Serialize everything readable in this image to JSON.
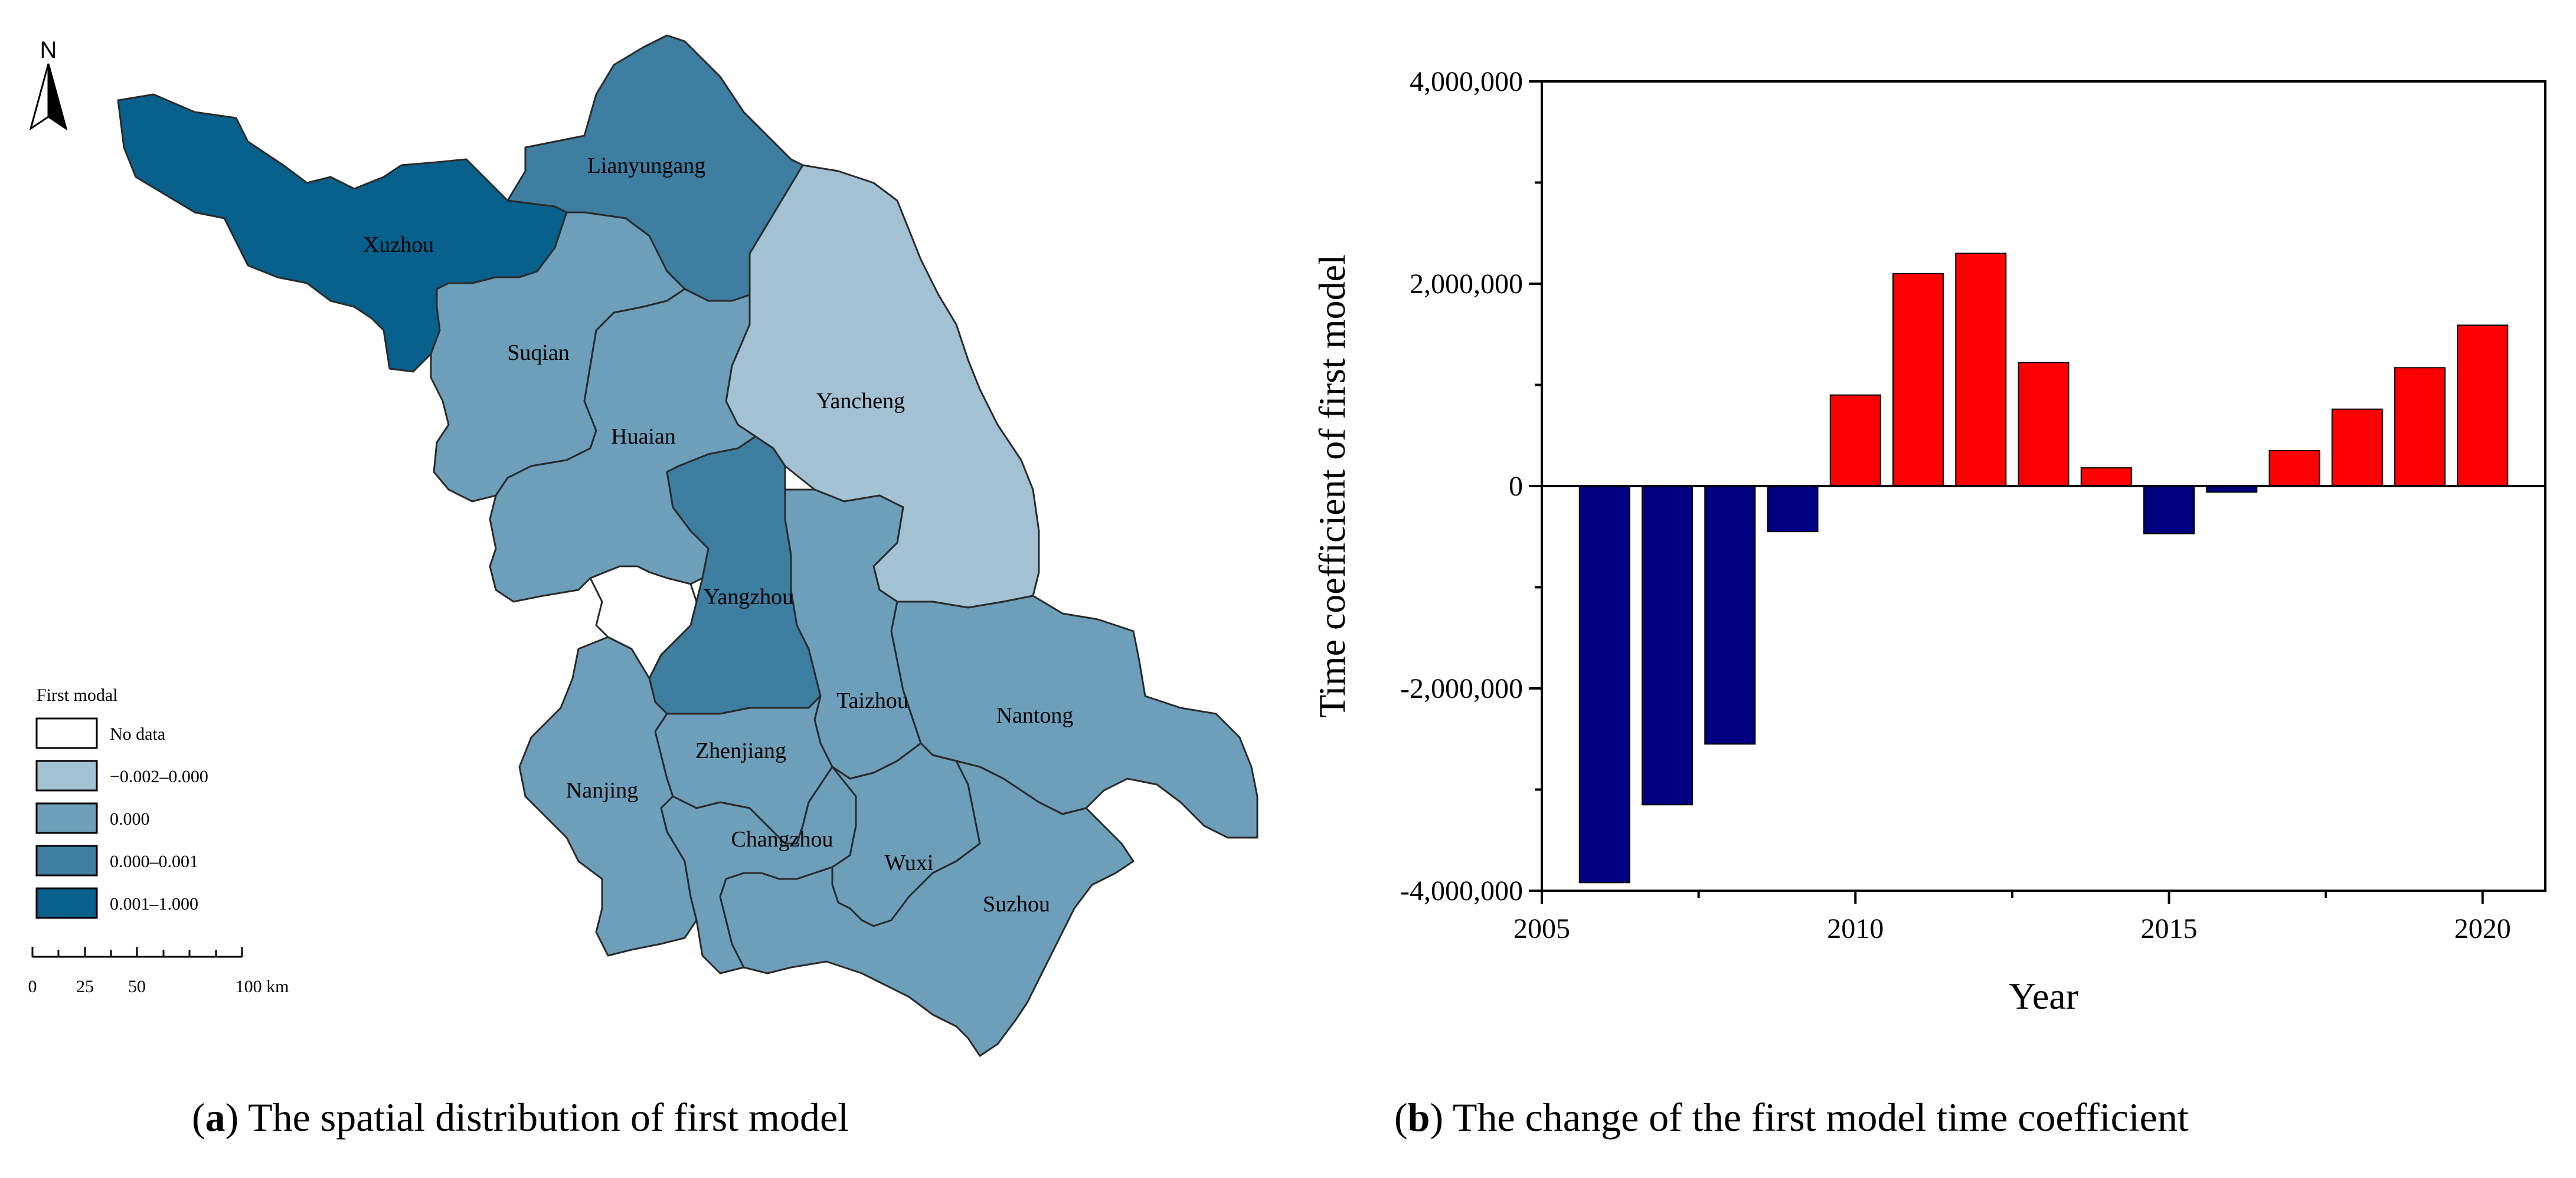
{
  "map": {
    "north_label": "N",
    "legend_title": "First modal",
    "legend": [
      {
        "label": "No data",
        "color": "#ffffff"
      },
      {
        "label": "−0.002–0.000",
        "color": "#a2c1d2"
      },
      {
        "label": "0.000",
        "color": "#6e9fba"
      },
      {
        "label": "0.000–0.001",
        "color": "#3d7ea1"
      },
      {
        "label": "0.001–1.000",
        "color": "#08608c"
      }
    ],
    "scale_labels": [
      "0",
      "25",
      "50",
      "100 km"
    ],
    "regions": [
      {
        "key": "xuzhou",
        "name": "Xuzhou",
        "color": "#08608c"
      },
      {
        "key": "lianyungang",
        "name": "Lianyungang",
        "color": "#3d7ea1"
      },
      {
        "key": "suqian",
        "name": "Suqian",
        "color": "#6e9fba"
      },
      {
        "key": "yancheng",
        "name": "Yancheng",
        "color": "#a2c1d2"
      },
      {
        "key": "huaian",
        "name": "Huaian",
        "color": "#6e9fba"
      },
      {
        "key": "yangzhou",
        "name": "Yangzhou",
        "color": "#3d7ea1"
      },
      {
        "key": "taizhou",
        "name": "Taizhou",
        "color": "#6e9fba"
      },
      {
        "key": "nantong",
        "name": "Nantong",
        "color": "#6e9fba"
      },
      {
        "key": "nanjing",
        "name": "Nanjing",
        "color": "#6e9fba"
      },
      {
        "key": "zhenjiang",
        "name": "Zhenjiang",
        "color": "#6e9fba"
      },
      {
        "key": "changzhou",
        "name": "Changzhou",
        "color": "#6e9fba"
      },
      {
        "key": "wuxi",
        "name": "Wuxi",
        "color": "#6e9fba"
      },
      {
        "key": "suzhou",
        "name": "Suzhou",
        "color": "#6e9fba"
      }
    ]
  },
  "chart_data": {
    "type": "bar",
    "title": "",
    "xlabel": "Year",
    "ylabel": "Time coefficient of first model",
    "x": [
      2006,
      2007,
      2008,
      2009,
      2010,
      2011,
      2012,
      2013,
      2014,
      2015,
      2016,
      2017,
      2018,
      2019,
      2020
    ],
    "values": [
      -3920000,
      -3150000,
      -2550000,
      -450000,
      900000,
      2100000,
      2300000,
      1220000,
      180000,
      -470000,
      -60000,
      350000,
      760000,
      1170000,
      1590000
    ],
    "xlim": [
      2005,
      2021
    ],
    "ylim": [
      -4000000,
      4000000
    ],
    "xticks": [
      2005,
      2010,
      2015,
      2020
    ],
    "xtick_labels": [
      "2005",
      "2010",
      "2015",
      "2020"
    ],
    "yticks": [
      -4000000,
      -2000000,
      0,
      2000000,
      4000000
    ],
    "ytick_labels": [
      "-4,000,000",
      "-2,000,000",
      "0",
      "2,000,000",
      "4,000,000"
    ],
    "positive_color": "#ff0000",
    "negative_color": "#000080",
    "grid": false,
    "legend": false
  },
  "captions": {
    "a": {
      "letter": "a",
      "text": ") The spatial distribution of first model"
    },
    "b": {
      "letter": "b",
      "text": ") The change of the first model time coefficient"
    }
  }
}
